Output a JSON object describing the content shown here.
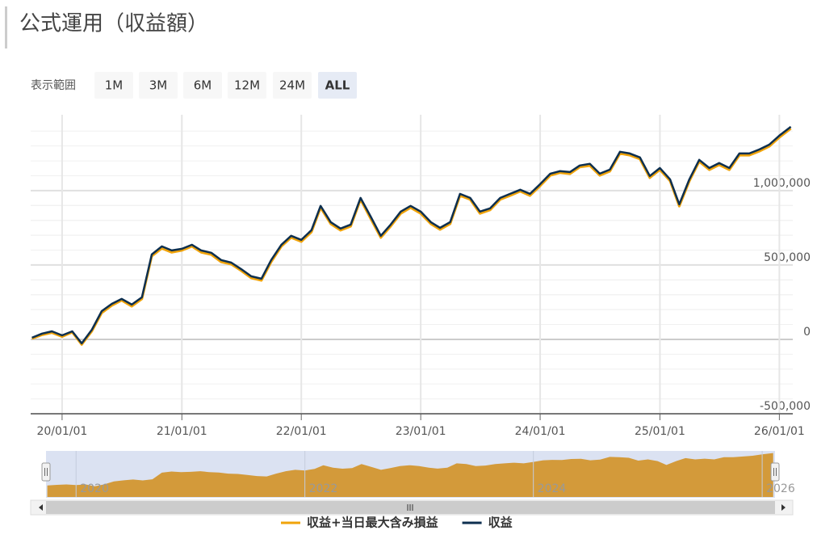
{
  "header": {
    "title": "公式運用（収益額）"
  },
  "range_selector": {
    "label": "表示範囲",
    "buttons": [
      "1M",
      "3M",
      "6M",
      "12M",
      "24M",
      "ALL"
    ],
    "selected": 5
  },
  "chart_data": {
    "type": "line",
    "x": [
      "2019-10-01",
      "2019-11-01",
      "2019-12-01",
      "2020-01-01",
      "2020-02-01",
      "2020-03-01",
      "2020-04-01",
      "2020-05-01",
      "2020-06-01",
      "2020-07-01",
      "2020-08-01",
      "2020-09-01",
      "2020-10-01",
      "2020-11-01",
      "2020-12-01",
      "2021-01-01",
      "2021-02-01",
      "2021-03-01",
      "2021-04-01",
      "2021-05-01",
      "2021-06-01",
      "2021-07-01",
      "2021-08-01",
      "2021-09-01",
      "2021-10-01",
      "2021-11-01",
      "2021-12-01",
      "2022-01-01",
      "2022-02-01",
      "2022-03-01",
      "2022-04-01",
      "2022-05-01",
      "2022-06-01",
      "2022-07-01",
      "2022-08-01",
      "2022-09-01",
      "2022-10-01",
      "2022-11-01",
      "2022-12-01",
      "2023-01-01",
      "2023-02-01",
      "2023-03-01",
      "2023-04-01",
      "2023-05-01",
      "2023-06-01",
      "2023-07-01",
      "2023-08-01",
      "2023-09-01",
      "2023-10-01",
      "2023-11-01",
      "2023-12-01",
      "2024-01-01",
      "2024-02-01",
      "2024-03-01",
      "2024-04-01",
      "2024-05-01",
      "2024-06-01",
      "2024-07-01",
      "2024-08-01",
      "2024-09-01",
      "2024-10-01",
      "2024-11-01",
      "2024-12-01",
      "2025-01-01",
      "2025-02-01",
      "2025-03-01",
      "2025-04-01",
      "2025-05-01",
      "2025-06-01",
      "2025-07-01",
      "2025-08-01",
      "2025-09-01",
      "2025-10-01",
      "2025-11-01",
      "2025-12-01",
      "2026-01-01",
      "2026-02-05"
    ],
    "series": [
      {
        "name": "収益+当日最大含み損益",
        "color": "#f0a30a",
        "values": [
          5000,
          30000,
          45000,
          18000,
          48000,
          -35000,
          55000,
          178000,
          228000,
          262000,
          222000,
          272000,
          560000,
          612000,
          585000,
          598000,
          625000,
          585000,
          570000,
          520000,
          505000,
          462000,
          412000,
          396000,
          520000,
          625000,
          684000,
          657000,
          722000,
          885000,
          776000,
          733000,
          760000,
          940000,
          812000,
          684000,
          760000,
          846000,
          885000,
          846000,
          776000,
          738000,
          776000,
          966000,
          940000,
          846000,
          870000,
          940000,
          966000,
          995000,
          966000,
          1032000,
          1102000,
          1120000,
          1113000,
          1158000,
          1168000,
          1102000,
          1130000,
          1250000,
          1238000,
          1212000,
          1086000,
          1140000,
          1065000,
          895000,
          1064000,
          1195000,
          1140000,
          1173000,
          1140000,
          1238000,
          1238000,
          1265000,
          1297000,
          1358000,
          1417000
        ]
      },
      {
        "name": "収益",
        "color": "#0d2f4f",
        "values": [
          11000,
          39000,
          54000,
          27000,
          54000,
          -27000,
          65000,
          190000,
          239000,
          272000,
          234000,
          283000,
          571000,
          625000,
          598000,
          609000,
          636000,
          598000,
          582000,
          533000,
          516000,
          473000,
          424000,
          408000,
          533000,
          636000,
          696000,
          669000,
          734000,
          897000,
          788000,
          745000,
          772000,
          951000,
          826000,
          696000,
          772000,
          859000,
          897000,
          859000,
          788000,
          750000,
          788000,
          978000,
          951000,
          859000,
          881000,
          951000,
          978000,
          1006000,
          978000,
          1044000,
          1114000,
          1131000,
          1125000,
          1169000,
          1180000,
          1114000,
          1141000,
          1261000,
          1250000,
          1223000,
          1098000,
          1152000,
          1076000,
          908000,
          1076000,
          1207000,
          1152000,
          1185000,
          1152000,
          1250000,
          1250000,
          1277000,
          1309000,
          1370000,
          1429000
        ]
      }
    ],
    "xlim": [
      "2019-09-27",
      "2026-02-11"
    ],
    "xticks": [
      {
        "value": "2020-01-01",
        "label": "20/01/01"
      },
      {
        "value": "2021-01-01",
        "label": "21/01/01"
      },
      {
        "value": "2022-01-01",
        "label": "22/01/01"
      },
      {
        "value": "2023-01-01",
        "label": "23/01/01"
      },
      {
        "value": "2024-01-01",
        "label": "24/01/01"
      },
      {
        "value": "2025-01-01",
        "label": "25/01/01"
      },
      {
        "value": "2026-01-01",
        "label": "26/01/01"
      }
    ],
    "ylim": [
      -500000,
      1510000
    ],
    "yticks": [
      {
        "value": -500000,
        "label": "-500,000"
      },
      0,
      {
        "value": 500000,
        "label": "500,000"
      },
      {
        "value": 1000000,
        "label": "1,000,000"
      }
    ],
    "grid": true,
    "navigator": {
      "color": "#d39a3a",
      "xticks": [
        {
          "value": "2020-01-01",
          "label": "2020"
        },
        {
          "value": "2022-01-01",
          "label": "2022"
        },
        {
          "value": "2024-01-01",
          "label": "2024"
        },
        {
          "value": "2026-01-01",
          "label": "2026"
        }
      ]
    },
    "legend": "bottom"
  }
}
